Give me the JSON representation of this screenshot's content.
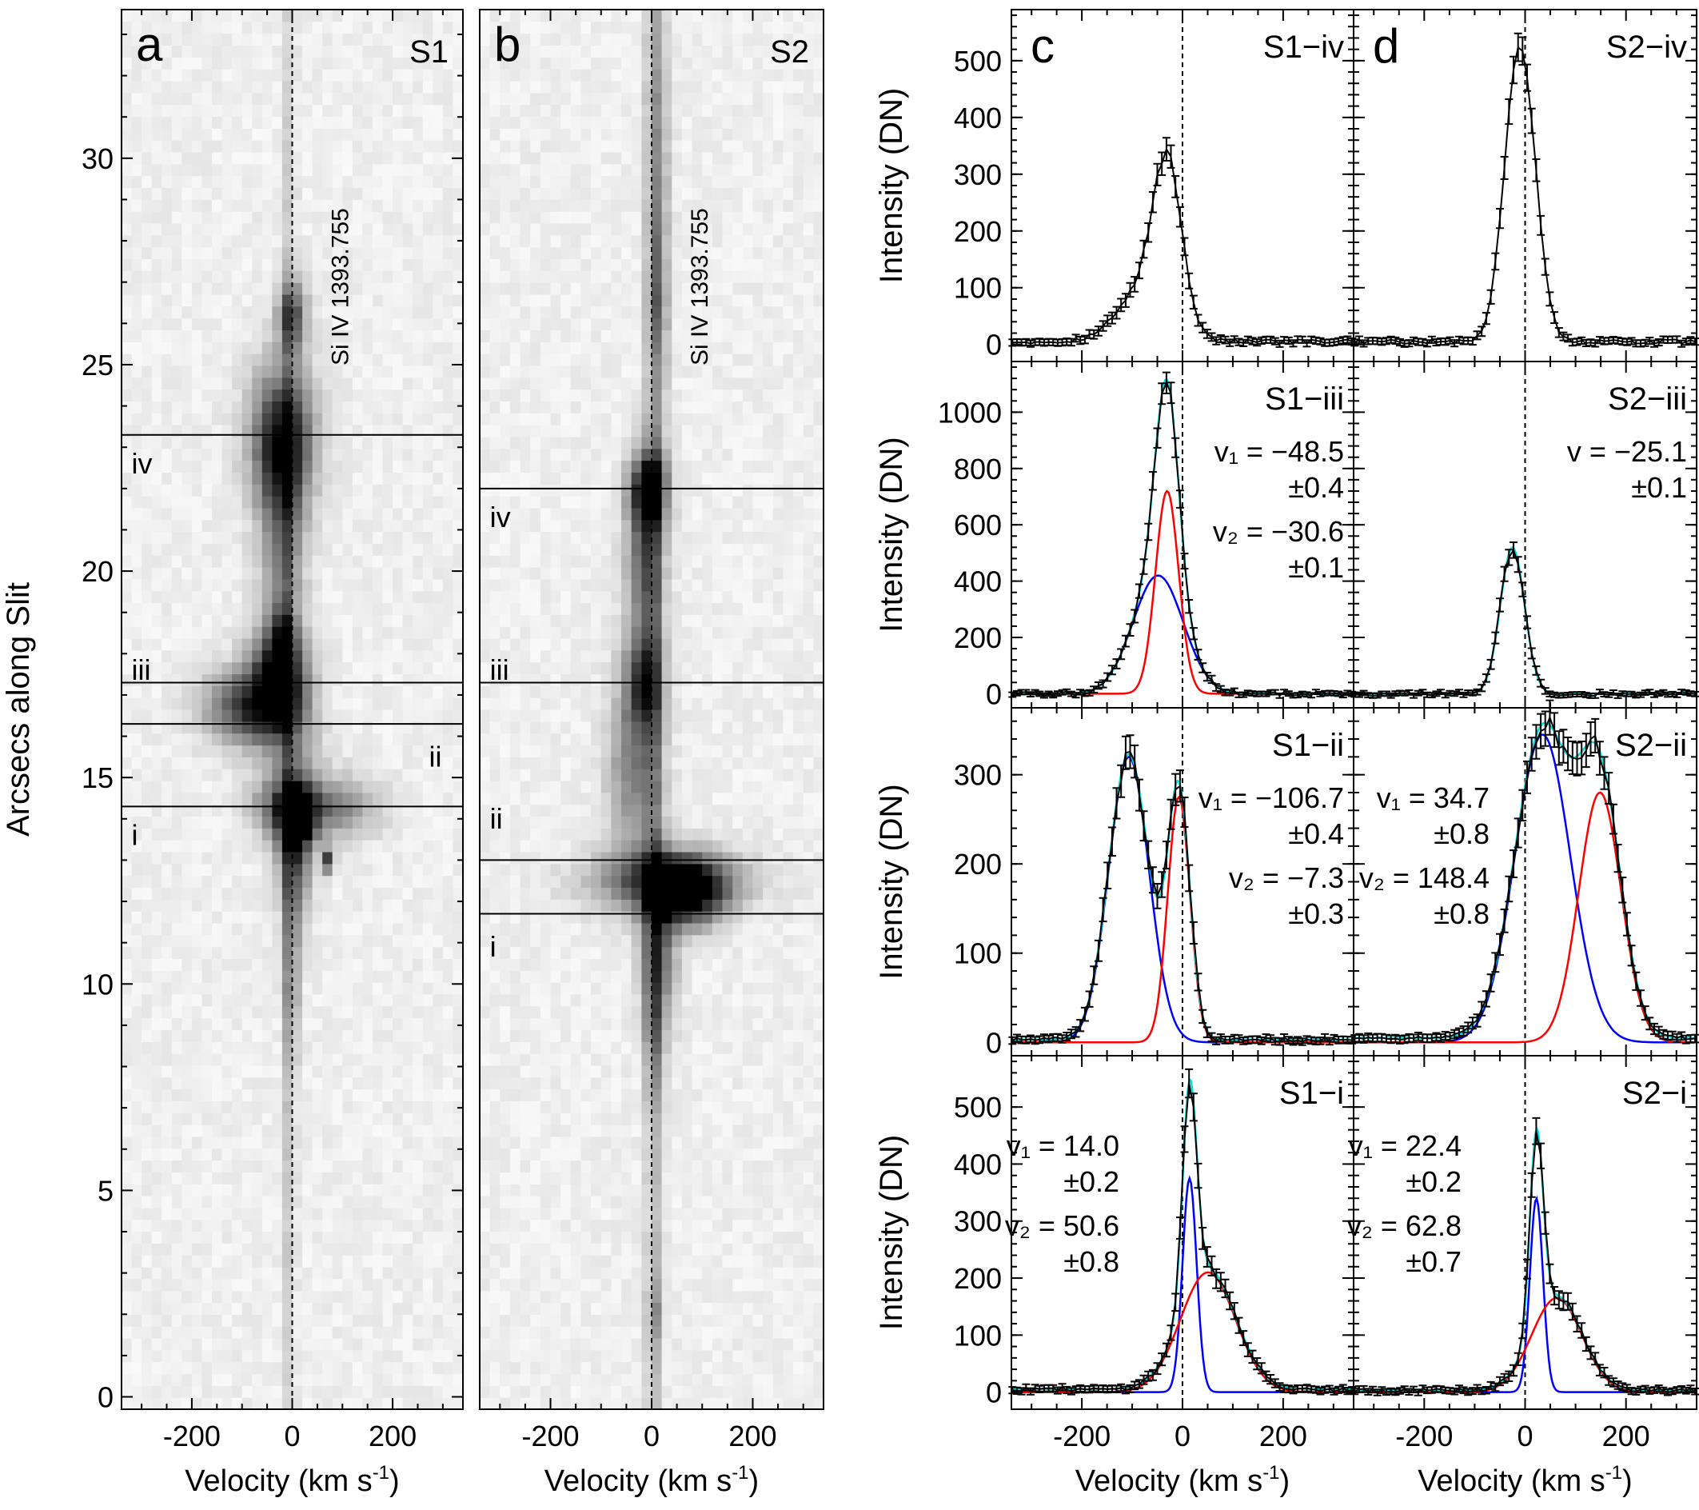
{
  "colors": {
    "component1": "#0000ff",
    "component2": "#ff0000",
    "fit": "#00e0e0",
    "observed": "#000000"
  },
  "chart_data": [
    {
      "type": "heatmap",
      "panel": "a",
      "slit": "S1",
      "line_label": "Si IV 1393.755",
      "xlabel": "Velocity (km s",
      "xlabel_sup": "-1",
      "xlabel_end": ")",
      "ylabel": "Arcsecs along Slit",
      "xlim": [
        -340,
        340
      ],
      "ylim": [
        -0.3,
        33.6
      ],
      "xticks": [
        -200,
        0,
        200
      ],
      "yticks": [
        0,
        5,
        10,
        15,
        20,
        25,
        30
      ],
      "xtick_labels": [
        "-200",
        "0",
        "200"
      ],
      "ytick_labels": [
        "0",
        "5",
        "10",
        "15",
        "20",
        "25",
        "30"
      ],
      "cut_lines": [
        23.3,
        17.3,
        16.3,
        14.3
      ],
      "region_labels": [
        {
          "text": "iv",
          "v": -320,
          "y": 22.6
        },
        {
          "text": "iii",
          "v": -320,
          "y": 17.6
        },
        {
          "text": "ii",
          "v": 285,
          "y": 15.5
        },
        {
          "text": "i",
          "v": -320,
          "y": 13.6
        }
      ],
      "blobs": [
        {
          "v": -5,
          "y": 16.0,
          "sv": 8,
          "sy": 16,
          "a": 0.22
        },
        {
          "v": -20,
          "y": 23.2,
          "sv": 45,
          "sy": 1.2,
          "a": 0.75
        },
        {
          "v": -20,
          "y": 21.0,
          "sv": 30,
          "sy": 2.0,
          "a": 0.45
        },
        {
          "v": 0,
          "y": 26.2,
          "sv": 20,
          "sy": 0.6,
          "a": 0.6
        },
        {
          "v": -30,
          "y": 17.3,
          "sv": 40,
          "sy": 0.9,
          "a": 0.9
        },
        {
          "v": -100,
          "y": 16.7,
          "sv": 55,
          "sy": 0.6,
          "a": 0.6
        },
        {
          "v": -20,
          "y": 18.2,
          "sv": 15,
          "sy": 0.6,
          "a": 0.5
        },
        {
          "v": 0,
          "y": 15.5,
          "sv": 40,
          "sy": 1.2,
          "a": 0.25
        },
        {
          "v": 10,
          "y": 14.1,
          "sv": 25,
          "sy": 0.5,
          "a": 0.9
        },
        {
          "v": 80,
          "y": 14.3,
          "sv": 60,
          "sy": 0.5,
          "a": 0.45
        },
        {
          "v": -40,
          "y": 14.3,
          "sv": 40,
          "sy": 0.5,
          "a": 0.3
        },
        {
          "v": 5,
          "y": 13.2,
          "sv": 25,
          "sy": 1.0,
          "a": 0.55
        },
        {
          "v": 0,
          "y": 10.5,
          "sv": 12,
          "sy": 1.5,
          "a": 0.3
        },
        {
          "v": 75,
          "y": 13.0,
          "sv": 6,
          "sy": 0.2,
          "a": 0.95
        }
      ]
    },
    {
      "type": "heatmap",
      "panel": "b",
      "slit": "S2",
      "line_label": "Si IV 1393.755",
      "xlabel": "Velocity (km s",
      "xlabel_sup": "-1",
      "xlabel_end": ")",
      "xlim": [
        -340,
        340
      ],
      "ylim": [
        -0.3,
        33.6
      ],
      "xticks": [
        -200,
        0,
        200
      ],
      "xtick_labels": [
        "-200",
        "0",
        "200"
      ],
      "cut_lines": [
        22.0,
        17.3,
        13.0,
        11.7
      ],
      "region_labels": [
        {
          "text": "iv",
          "v": -320,
          "y": 21.3
        },
        {
          "text": "iii",
          "v": -320,
          "y": 17.6
        },
        {
          "text": "ii",
          "v": -320,
          "y": 14.0
        },
        {
          "text": "i",
          "v": -320,
          "y": 10.9
        }
      ],
      "blobs": [
        {
          "v": 5,
          "y": 17.0,
          "sv": 12,
          "sy": 17,
          "a": 0.28
        },
        {
          "v": 15,
          "y": 29.0,
          "sv": 15,
          "sy": 3.5,
          "a": 0.25
        },
        {
          "v": 15,
          "y": 26.5,
          "sv": 12,
          "sy": 1.0,
          "a": 0.2
        },
        {
          "v": -5,
          "y": 22.0,
          "sv": 25,
          "sy": 0.6,
          "a": 0.85
        },
        {
          "v": -15,
          "y": 20.3,
          "sv": 25,
          "sy": 1.5,
          "a": 0.55
        },
        {
          "v": -15,
          "y": 17.3,
          "sv": 25,
          "sy": 0.8,
          "a": 0.65
        },
        {
          "v": -35,
          "y": 15.2,
          "sv": 35,
          "sy": 1.5,
          "a": 0.45
        },
        {
          "v": 30,
          "y": 12.5,
          "sv": 100,
          "sy": 0.5,
          "a": 0.65
        },
        {
          "v": 70,
          "y": 12.2,
          "sv": 50,
          "sy": 0.55,
          "a": 0.85
        },
        {
          "v": 15,
          "y": 11.0,
          "sv": 25,
          "sy": 1.4,
          "a": 0.5
        },
        {
          "v": 5,
          "y": 9.0,
          "sv": 12,
          "sy": 1.2,
          "a": 0.25
        },
        {
          "v": 5,
          "y": 2.0,
          "sv": 10,
          "sy": 0.6,
          "a": 0.25
        }
      ]
    },
    {
      "type": "line",
      "panel_grid": "profiles",
      "panel_letters": [
        "c",
        "d"
      ],
      "xlabel": "Velocity (km s",
      "xlabel_sup": "-1",
      "xlabel_end": ")",
      "ylabel": "Intensity (DN)",
      "xlim": [
        -340,
        340
      ],
      "xticks": [
        -200,
        0,
        200
      ],
      "xtick_labels": [
        "-200",
        "0",
        "200"
      ],
      "series_style": {
        "observed": "black with error bars",
        "component1": "blue",
        "component2": "red",
        "fit": "cyan"
      },
      "panels": [
        {
          "id": "S1-iv",
          "title": "S1−iv",
          "ylim": [
            -30,
            590
          ],
          "yticks": [
            0,
            100,
            200,
            300,
            400,
            500
          ],
          "ytick_labels": [
            "0",
            "100",
            "200",
            "300",
            "400",
            "500"
          ],
          "background": 5,
          "components": [
            {
              "amp": 260,
              "center": -30,
              "sigma": 28
            },
            {
              "amp": 95,
              "center": -70,
              "sigma": 55
            }
          ],
          "fit": false,
          "show_components": false,
          "annotations": []
        },
        {
          "id": "S2-iv",
          "title": "S2−iv",
          "ylim": [
            -30,
            590
          ],
          "yticks": [
            0,
            100,
            200,
            300,
            400,
            500
          ],
          "ytick_labels": [
            "0",
            "100",
            "200",
            "300",
            "400",
            "500"
          ],
          "background": 5,
          "components": [
            {
              "amp": 530,
              "center": -10,
              "sigma": 30
            }
          ],
          "fit": false,
          "show_components": false,
          "annotations": []
        },
        {
          "id": "S1-iii",
          "title": "S1−iii",
          "ylim": [
            -50,
            1180
          ],
          "yticks": [
            0,
            200,
            400,
            600,
            800,
            1000
          ],
          "ytick_labels": [
            "0",
            "200",
            "400",
            "600",
            "800",
            "1000"
          ],
          "background": 0,
          "components": [
            {
              "amp": 420,
              "center": -48.5,
              "sigma": 50
            },
            {
              "amp": 720,
              "center": -30.6,
              "sigma": 23
            }
          ],
          "fit": true,
          "show_components": true,
          "annotations": [
            {
              "text": "v₁ = −48.5",
              "color": "component1",
              "line": 1
            },
            {
              "text": "±0.4",
              "color": "component1",
              "line": 2
            },
            {
              "text": "v₂ = −30.6",
              "color": "component2",
              "line": 3
            },
            {
              "text": "±0.1",
              "color": "component2",
              "line": 4
            }
          ]
        },
        {
          "id": "S2-iii",
          "title": "S2−iii",
          "ylim": [
            -50,
            1180
          ],
          "yticks": [
            0,
            200,
            400,
            600,
            800,
            1000
          ],
          "ytick_labels": [
            "0",
            "200",
            "400",
            "600",
            "800",
            "1000"
          ],
          "background": 0,
          "components": [
            {
              "amp": 520,
              "center": -25.1,
              "sigma": 24
            }
          ],
          "fit": true,
          "show_components": false,
          "annotations": [
            {
              "text": "v = −25.1",
              "color": "observed",
              "line": 1
            },
            {
              "text": "±0.1",
              "color": "observed",
              "line": 2
            }
          ]
        },
        {
          "id": "S1-ii",
          "title": "S1−ii",
          "ylim": [
            -15,
            375
          ],
          "yticks": [
            0,
            100,
            200,
            300
          ],
          "ytick_labels": [
            "0",
            "100",
            "200",
            "300"
          ],
          "background": 3,
          "components": [
            {
              "amp": 320,
              "center": -106.7,
              "sigma": 40
            },
            {
              "amp": 275,
              "center": -7.3,
              "sigma": 22
            }
          ],
          "fit": true,
          "show_components": true,
          "annotations": [
            {
              "text": "v₁ = −106.7",
              "color": "component1",
              "line": 1
            },
            {
              "text": "±0.4",
              "color": "component1",
              "line": 2
            },
            {
              "text": "v₂ = −7.3",
              "color": "component2",
              "line": 3
            },
            {
              "text": "±0.3",
              "color": "component2",
              "line": 4
            }
          ]
        },
        {
          "id": "S2-ii",
          "title": "S2−ii",
          "ylim": [
            -15,
            375
          ],
          "yticks": [
            0,
            100,
            200,
            300
          ],
          "ytick_labels": [
            "0",
            "100",
            "200",
            "300"
          ],
          "background": 5,
          "components": [
            {
              "amp": 345,
              "center": 34.7,
              "sigma": 55
            },
            {
              "amp": 280,
              "center": 148.4,
              "sigma": 42
            }
          ],
          "fit": true,
          "show_components": true,
          "annotations": [
            {
              "text": "v₁ = 34.7",
              "color": "component1",
              "line": 1
            },
            {
              "text": "±0.8",
              "color": "component1",
              "line": 2
            },
            {
              "text": "v₂ = 148.4",
              "color": "component2",
              "line": 3
            },
            {
              "text": "±0.8",
              "color": "component2",
              "line": 4
            }
          ]
        },
        {
          "id": "S1-i",
          "title": "S1−i",
          "ylim": [
            -30,
            590
          ],
          "yticks": [
            0,
            100,
            200,
            300,
            400,
            500
          ],
          "ytick_labels": [
            "0",
            "100",
            "200",
            "300",
            "400",
            "500"
          ],
          "background": 5,
          "components": [
            {
              "amp": 375,
              "center": 14.0,
              "sigma": 14
            },
            {
              "amp": 210,
              "center": 50.6,
              "sigma": 55
            }
          ],
          "fit": true,
          "show_components": true,
          "annotations": [
            {
              "text": "v₁ = 14.0",
              "color": "component1",
              "line": 1
            },
            {
              "text": "±0.2",
              "color": "component1",
              "line": 2
            },
            {
              "text": "v₂ = 50.6",
              "color": "component2",
              "line": 3
            },
            {
              "text": "±0.8",
              "color": "component2",
              "line": 4
            }
          ]
        },
        {
          "id": "S2-i",
          "title": "S2−i",
          "ylim": [
            -30,
            590
          ],
          "yticks": [
            0,
            100,
            200,
            300,
            400,
            500
          ],
          "ytick_labels": [
            "0",
            "100",
            "200",
            "300",
            "400",
            "500"
          ],
          "background": 3,
          "components": [
            {
              "amp": 340,
              "center": 22.4,
              "sigma": 13
            },
            {
              "amp": 165,
              "center": 62.8,
              "sigma": 50
            }
          ],
          "fit": true,
          "show_components": true,
          "annotations": [
            {
              "text": "v₁ = 22.4",
              "color": "component1",
              "line": 1
            },
            {
              "text": "±0.2",
              "color": "component1",
              "line": 2
            },
            {
              "text": "v₂ = 62.8",
              "color": "component2",
              "line": 3
            },
            {
              "text": "±0.7",
              "color": "component2",
              "line": 4
            }
          ]
        }
      ]
    }
  ]
}
